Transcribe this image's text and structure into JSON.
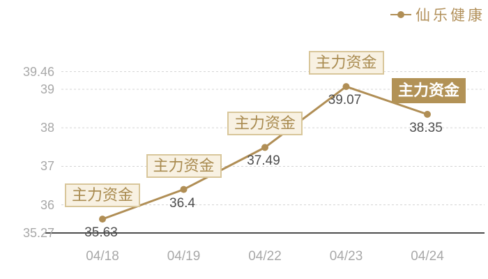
{
  "legend": {
    "label": "仙乐健康",
    "marker": "line-dot-icon",
    "position": "top-right"
  },
  "colors": {
    "series": "#b08e55",
    "grid": "#d3d3d3",
    "axis_line": "#4c4c4c",
    "tick_text": "#a8a8a8",
    "value_text": "#4d4d4d",
    "badge_outline_bg": "#f8f1e2",
    "badge_outline_border": "#d8c69a",
    "badge_outline_text": "#a98b50",
    "badge_solid_bg": "#b29256",
    "badge_solid_text": "#ffffff",
    "background": "#ffffff"
  },
  "chart_data": {
    "type": "line",
    "title": "",
    "xlabel": "",
    "ylabel": "",
    "series": [
      {
        "name": "仙乐健康",
        "x": [
          "04/18",
          "04/19",
          "04/22",
          "04/23",
          "04/24"
        ],
        "values": [
          35.63,
          36.4,
          37.49,
          39.07,
          38.35
        ],
        "point_labels": [
          "35.63",
          "36.4",
          "37.49",
          "39.07",
          "38.35"
        ],
        "color": "#b08e55",
        "marker": "filled-circle"
      }
    ],
    "categories": [
      "04/18",
      "04/19",
      "04/22",
      "04/23",
      "04/24"
    ],
    "y_ticks": [
      {
        "value": 39.46,
        "label": "39.46"
      },
      {
        "value": 39,
        "label": "39"
      },
      {
        "value": 38,
        "label": "38"
      },
      {
        "value": 37,
        "label": "37"
      },
      {
        "value": 36,
        "label": "36"
      },
      {
        "value": 35.27,
        "label": "35.27"
      }
    ],
    "ylim": [
      35.27,
      39.46
    ],
    "grid": "horizontal-dashed",
    "legend_position": "top-right",
    "annotations": [
      {
        "x": "04/18",
        "label": "主力资金",
        "style": "outlined"
      },
      {
        "x": "04/19",
        "label": "主力资金",
        "style": "outlined"
      },
      {
        "x": "04/22",
        "label": "主力资金",
        "style": "outlined"
      },
      {
        "x": "04/23",
        "label": "主力资金",
        "style": "outlined"
      },
      {
        "x": "04/24",
        "label": "主力资金",
        "style": "solid"
      }
    ]
  }
}
